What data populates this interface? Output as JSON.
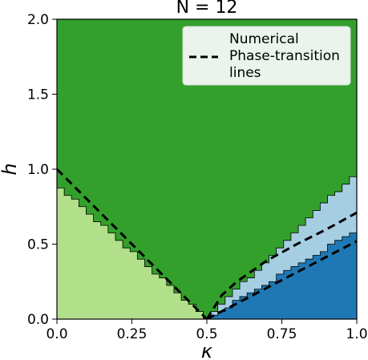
{
  "chart_data": {
    "type": "area",
    "title": "N = 12",
    "xlabel": "κ",
    "ylabel": "h",
    "xlim": [
      0.0,
      1.0
    ],
    "ylim": [
      0.0,
      2.0
    ],
    "x_ticks": [
      "0.0",
      "0.25",
      "0.5",
      "0.75",
      "1.0"
    ],
    "x_tick_values": [
      0.0,
      0.25,
      0.5,
      0.75,
      1.0
    ],
    "y_ticks": [
      "0.0",
      "0.5",
      "1.0",
      "1.5",
      "2.0"
    ],
    "y_tick_values": [
      0.0,
      0.5,
      1.0,
      1.5,
      2.0
    ],
    "grid": false,
    "legend": {
      "placement": "top-right",
      "entries": [
        "Numerical",
        "Phase-transition",
        "lines"
      ]
    },
    "colors": {
      "top_phase": "#33a02c",
      "left_phase": "#b2df8a",
      "middle_phase": "#a6cee3",
      "bottom_phase": "#1f78b4",
      "transition_lines": "#000000",
      "legend_background": "#eaf4ec"
    },
    "regions": {
      "left_boundary": [
        [
          0.0,
          0.9
        ],
        [
          0.5,
          0.0
        ]
      ],
      "right_upper_boundary": [
        [
          0.5,
          0.0
        ],
        [
          1.0,
          0.98
        ]
      ],
      "right_lower_boundary": [
        [
          0.5,
          0.0
        ],
        [
          1.0,
          0.59
        ]
      ]
    },
    "series": [
      {
        "x": [
          0.0,
          0.5
        ],
        "y": [
          1.0,
          0.0
        ]
      },
      {
        "x": [
          0.5,
          0.55,
          0.6,
          0.7,
          0.8,
          0.9,
          1.0
        ],
        "y": [
          0.0,
          0.16,
          0.25,
          0.39,
          0.5,
          0.6,
          0.71
        ]
      },
      {
        "x": [
          0.5,
          1.0
        ],
        "y": [
          0.0,
          0.52
        ]
      }
    ]
  }
}
